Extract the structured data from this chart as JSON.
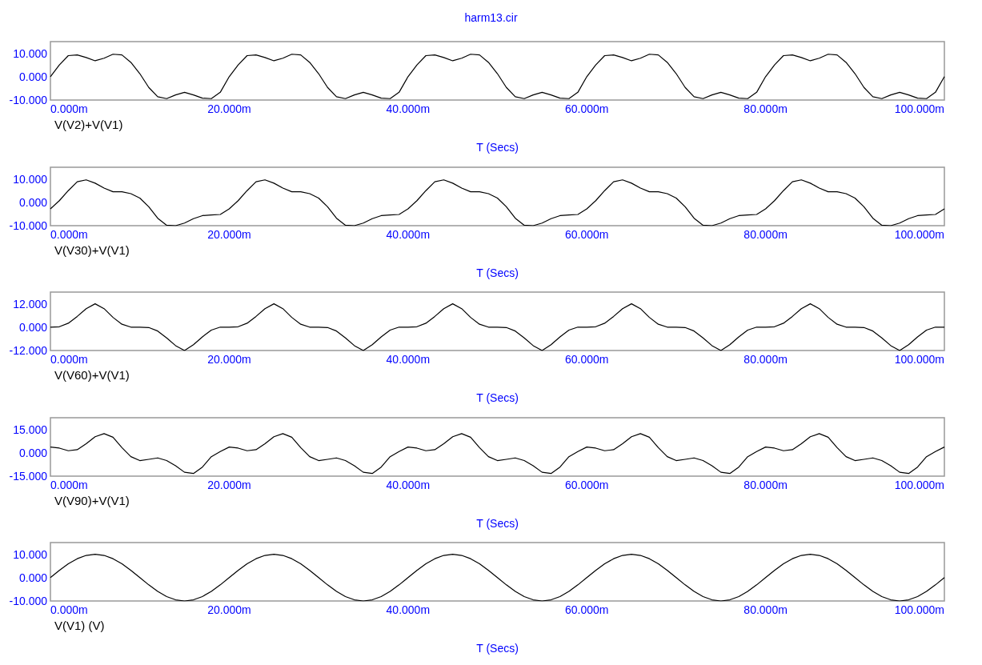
{
  "chart_data": [
    {
      "type": "line",
      "title": "harm13.cir",
      "xlabel": "T (Secs)",
      "legend": "bottom left",
      "x": [
        0,
        1,
        2,
        3,
        4,
        5,
        6,
        7,
        8,
        9,
        10,
        11,
        12,
        13,
        14,
        15,
        16,
        17,
        18,
        19,
        20,
        21,
        22,
        23,
        24,
        25,
        26,
        27,
        28,
        29,
        30,
        31,
        32,
        33,
        34,
        35,
        36,
        37,
        38,
        39,
        40,
        41,
        42,
        43,
        44,
        45,
        46,
        47,
        48,
        49,
        50,
        51,
        52,
        53,
        54,
        55,
        56,
        57,
        58,
        59,
        60,
        61,
        62,
        63,
        64,
        65,
        66,
        67,
        68,
        69,
        70,
        71,
        72,
        73,
        74,
        75,
        76,
        77,
        78,
        79,
        80,
        81,
        82,
        83,
        84,
        85,
        86,
        87,
        88,
        89,
        90,
        91,
        92,
        93,
        94,
        95,
        96,
        97,
        98,
        99,
        100
      ],
      "series": [
        {
          "name": "V(V2)+V(V1)",
          "color": "#000000",
          "values": [
            0,
            5,
            9,
            9.3,
            8.2,
            6.8,
            7.9,
            9.6,
            9.3,
            6.1,
            1.3,
            -4.6,
            -8.6,
            -9.4,
            -7.8,
            -6.7,
            -7.8,
            -9.2,
            -9.4,
            -6.7,
            0,
            5,
            9,
            9.3,
            8.2,
            6.8,
            7.9,
            9.6,
            9.3,
            6.1,
            1.3,
            -4.6,
            -8.6,
            -9.4,
            -7.8,
            -6.7,
            -7.8,
            -9.2,
            -9.4,
            -6.7,
            0,
            5,
            9,
            9.3,
            8.2,
            6.8,
            7.9,
            9.6,
            9.3,
            6.1,
            1.3,
            -4.6,
            -8.6,
            -9.4,
            -7.8,
            -6.7,
            -7.8,
            -9.2,
            -9.4,
            -6.7,
            0,
            5,
            9,
            9.3,
            8.2,
            6.8,
            7.9,
            9.6,
            9.3,
            6.1,
            1.3,
            -4.6,
            -8.6,
            -9.4,
            -7.8,
            -6.7,
            -7.8,
            -9.2,
            -9.4,
            -6.7,
            0,
            5,
            9,
            9.3,
            8.2,
            6.8,
            7.9,
            9.6,
            9.3,
            6.1,
            1.3,
            -4.6,
            -8.6,
            -9.4,
            -7.8,
            -6.7,
            -7.8,
            -9.2,
            -9.4,
            -6.7,
            0
          ]
        }
      ],
      "xlim": [
        0,
        100
      ],
      "xticks": [
        {
          "value": 0,
          "label": "0.000m"
        },
        {
          "value": 20,
          "label": "20.000m"
        },
        {
          "value": 40,
          "label": "40.000m"
        },
        {
          "value": 60,
          "label": "60.000m"
        },
        {
          "value": 80,
          "label": "80.000m"
        },
        {
          "value": 100,
          "label": "100.000m"
        }
      ],
      "ylim": [
        -10,
        15
      ],
      "yticks": [
        {
          "value": -10,
          "label": "-10.000"
        },
        {
          "value": 0,
          "label": "0.000"
        },
        {
          "value": 10,
          "label": "10.000"
        }
      ]
    },
    {
      "type": "line",
      "xlabel": "T (Secs)",
      "legend": "bottom left",
      "x": [
        0,
        1,
        2,
        3,
        4,
        5,
        6,
        7,
        8,
        9,
        10,
        11,
        12,
        13,
        14,
        15,
        16,
        17,
        18,
        19,
        20,
        21,
        22,
        23,
        24,
        25,
        26,
        27,
        28,
        29,
        30,
        31,
        32,
        33,
        34,
        35,
        36,
        37,
        38,
        39,
        40,
        41,
        42,
        43,
        44,
        45,
        46,
        47,
        48,
        49,
        50,
        51,
        52,
        53,
        54,
        55,
        56,
        57,
        58,
        59,
        60,
        61,
        62,
        63,
        64,
        65,
        66,
        67,
        68,
        69,
        70,
        71,
        72,
        73,
        74,
        75,
        76,
        77,
        78,
        79,
        80,
        81,
        82,
        83,
        84,
        85,
        86,
        87,
        88,
        89,
        90,
        91,
        92,
        93,
        94,
        95,
        96,
        97,
        98,
        99,
        100
      ],
      "series": [
        {
          "name": "V(V30)+V(V1)",
          "color": "#000000",
          "values": [
            -2.8,
            0.7,
            5,
            8.8,
            9.6,
            8.2,
            6.1,
            4.5,
            4.5,
            3.7,
            1.8,
            -1.9,
            -6.8,
            -9.8,
            -10,
            -8.9,
            -7,
            -5.7,
            -5.4,
            -5.2,
            -2.8,
            0.7,
            5,
            8.8,
            9.6,
            8.2,
            6.1,
            4.5,
            4.5,
            3.7,
            1.8,
            -1.9,
            -6.8,
            -9.8,
            -10,
            -8.9,
            -7,
            -5.7,
            -5.4,
            -5.2,
            -2.8,
            0.7,
            5,
            8.8,
            9.6,
            8.2,
            6.1,
            4.5,
            4.5,
            3.7,
            1.8,
            -1.9,
            -6.8,
            -9.8,
            -10,
            -8.9,
            -7,
            -5.7,
            -5.4,
            -5.2,
            -2.8,
            0.7,
            5,
            8.8,
            9.6,
            8.2,
            6.1,
            4.5,
            4.5,
            3.7,
            1.8,
            -1.9,
            -6.8,
            -9.8,
            -10,
            -8.9,
            -7,
            -5.7,
            -5.4,
            -5.2,
            -2.8,
            0.7,
            5,
            8.8,
            9.6,
            8.2,
            6.1,
            4.5,
            4.5,
            3.7,
            1.8,
            -1.9,
            -6.8,
            -9.8,
            -10,
            -8.9,
            -7,
            -5.7,
            -5.4,
            -5.2,
            -2.8
          ]
        }
      ],
      "xlim": [
        0,
        100
      ],
      "xticks": [
        {
          "value": 0,
          "label": "0.000m"
        },
        {
          "value": 20,
          "label": "20.000m"
        },
        {
          "value": 40,
          "label": "40.000m"
        },
        {
          "value": 60,
          "label": "60.000m"
        },
        {
          "value": 80,
          "label": "80.000m"
        },
        {
          "value": 100,
          "label": "100.000m"
        }
      ],
      "ylim": [
        -10,
        15
      ],
      "yticks": [
        {
          "value": -10,
          "label": "-10.000"
        },
        {
          "value": 0,
          "label": "0.000"
        },
        {
          "value": 10,
          "label": "10.000"
        }
      ]
    },
    {
      "type": "line",
      "xlabel": "T (Secs)",
      "legend": "bottom left",
      "x": [
        0,
        1,
        2,
        3,
        4,
        5,
        6,
        7,
        8,
        9,
        10,
        11,
        12,
        13,
        14,
        15,
        16,
        17,
        18,
        19,
        20,
        21,
        22,
        23,
        24,
        25,
        26,
        27,
        28,
        29,
        30,
        31,
        32,
        33,
        34,
        35,
        36,
        37,
        38,
        39,
        40,
        41,
        42,
        43,
        44,
        45,
        46,
        47,
        48,
        49,
        50,
        51,
        52,
        53,
        54,
        55,
        56,
        57,
        58,
        59,
        60,
        61,
        62,
        63,
        64,
        65,
        66,
        67,
        68,
        69,
        70,
        71,
        72,
        73,
        74,
        75,
        76,
        77,
        78,
        79,
        80,
        81,
        82,
        83,
        84,
        85,
        86,
        87,
        88,
        89,
        90,
        91,
        92,
        93,
        94,
        95,
        96,
        97,
        98,
        99,
        100
      ],
      "series": [
        {
          "name": "V(V60)+V(V1)",
          "color": "#000000",
          "values": [
            0,
            0.2,
            2,
            5.5,
            9.5,
            12,
            9.5,
            5,
            1.5,
            0,
            0,
            -0.2,
            -2,
            -5.5,
            -9.5,
            -12,
            -9,
            -5,
            -1.5,
            0,
            0,
            0.2,
            2,
            5.5,
            9.5,
            12,
            9.5,
            5,
            1.5,
            0,
            0,
            -0.2,
            -2,
            -5.5,
            -9.5,
            -12,
            -9,
            -5,
            -1.5,
            0,
            0,
            0.2,
            2,
            5.5,
            9.5,
            12,
            9.5,
            5,
            1.5,
            0,
            0,
            -0.2,
            -2,
            -5.5,
            -9.5,
            -12,
            -9,
            -5,
            -1.5,
            0,
            0,
            0.2,
            2,
            5.5,
            9.5,
            12,
            9.5,
            5,
            1.5,
            0,
            0,
            -0.2,
            -2,
            -5.5,
            -9.5,
            -12,
            -9,
            -5,
            -1.5,
            0,
            0,
            0.2,
            2,
            5.5,
            9.5,
            12,
            9.5,
            5,
            1.5,
            0,
            0,
            -0.2,
            -2,
            -5.5,
            -9.5,
            -12,
            -9,
            -5,
            -1.5,
            0,
            0
          ]
        }
      ],
      "xlim": [
        0,
        100
      ],
      "xticks": [
        {
          "value": 0,
          "label": "0.000m"
        },
        {
          "value": 20,
          "label": "20.000m"
        },
        {
          "value": 40,
          "label": "40.000m"
        },
        {
          "value": 60,
          "label": "60.000m"
        },
        {
          "value": 80,
          "label": "80.000m"
        },
        {
          "value": 100,
          "label": "100.000m"
        }
      ],
      "ylim": [
        -12,
        18
      ],
      "yticks": [
        {
          "value": -12,
          "label": "-12.000"
        },
        {
          "value": 0,
          "label": "0.000"
        },
        {
          "value": 12,
          "label": "12.000"
        }
      ]
    },
    {
      "type": "line",
      "xlabel": "T (Secs)",
      "legend": "bottom left",
      "x": [
        0,
        1,
        2,
        3,
        4,
        5,
        6,
        7,
        8,
        9,
        10,
        11,
        12,
        13,
        14,
        15,
        16,
        17,
        18,
        19,
        20,
        21,
        22,
        23,
        24,
        25,
        26,
        27,
        28,
        29,
        30,
        31,
        32,
        33,
        34,
        35,
        36,
        37,
        38,
        39,
        40,
        41,
        42,
        43,
        44,
        45,
        46,
        47,
        48,
        49,
        50,
        51,
        52,
        53,
        54,
        55,
        56,
        57,
        58,
        59,
        60,
        61,
        62,
        63,
        64,
        65,
        66,
        67,
        68,
        69,
        70,
        71,
        72,
        73,
        74,
        75,
        76,
        77,
        78,
        79,
        80,
        81,
        82,
        83,
        84,
        85,
        86,
        87,
        88,
        89,
        90,
        91,
        92,
        93,
        94,
        95,
        96,
        97,
        98,
        99,
        100
      ],
      "series": [
        {
          "name": "V(V90)+V(V1)",
          "color": "#000000",
          "values": [
            3.7,
            3,
            1.3,
            2,
            5.8,
            10.3,
            12.3,
            10,
            3.3,
            -2.5,
            -5,
            -4.2,
            -3.3,
            -5,
            -8.3,
            -12.5,
            -13.3,
            -9.2,
            -2.5,
            0.8,
            3.7,
            3,
            1.3,
            2,
            5.8,
            10.3,
            12.3,
            10,
            3.3,
            -2.5,
            -5,
            -4.2,
            -3.3,
            -5,
            -8.3,
            -12.5,
            -13.3,
            -9.2,
            -2.5,
            0.8,
            3.7,
            3,
            1.3,
            2,
            5.8,
            10.3,
            12.3,
            10,
            3.3,
            -2.5,
            -5,
            -4.2,
            -3.3,
            -5,
            -8.3,
            -12.5,
            -13.3,
            -9.2,
            -2.5,
            0.8,
            3.7,
            3,
            1.3,
            2,
            5.8,
            10.3,
            12.3,
            10,
            3.3,
            -2.5,
            -5,
            -4.2,
            -3.3,
            -5,
            -8.3,
            -12.5,
            -13.3,
            -9.2,
            -2.5,
            0.8,
            3.7,
            3,
            1.3,
            2,
            5.8,
            10.3,
            12.3,
            10,
            3.3,
            -2.5,
            -5,
            -4.2,
            -3.3,
            -5,
            -8.3,
            -12.5,
            -13.3,
            -9.2,
            -2.5,
            0.8,
            3.7
          ]
        }
      ],
      "xlim": [
        0,
        100
      ],
      "xticks": [
        {
          "value": 0,
          "label": "0.000m"
        },
        {
          "value": 20,
          "label": "20.000m"
        },
        {
          "value": 40,
          "label": "40.000m"
        },
        {
          "value": 60,
          "label": "60.000m"
        },
        {
          "value": 80,
          "label": "80.000m"
        },
        {
          "value": 100,
          "label": "100.000m"
        }
      ],
      "ylim": [
        -15,
        22.5
      ],
      "yticks": [
        {
          "value": -15,
          "label": "-15.000"
        },
        {
          "value": 0,
          "label": "0.000"
        },
        {
          "value": 15,
          "label": "15.000"
        }
      ]
    },
    {
      "type": "line",
      "xlabel": "T (Secs)",
      "legend": "bottom left",
      "x": [
        0,
        1,
        2,
        3,
        4,
        5,
        6,
        7,
        8,
        9,
        10,
        11,
        12,
        13,
        14,
        15,
        16,
        17,
        18,
        19,
        20,
        21,
        22,
        23,
        24,
        25,
        26,
        27,
        28,
        29,
        30,
        31,
        32,
        33,
        34,
        35,
        36,
        37,
        38,
        39,
        40,
        41,
        42,
        43,
        44,
        45,
        46,
        47,
        48,
        49,
        50,
        51,
        52,
        53,
        54,
        55,
        56,
        57,
        58,
        59,
        60,
        61,
        62,
        63,
        64,
        65,
        66,
        67,
        68,
        69,
        70,
        71,
        72,
        73,
        74,
        75,
        76,
        77,
        78,
        79,
        80,
        81,
        82,
        83,
        84,
        85,
        86,
        87,
        88,
        89,
        90,
        91,
        92,
        93,
        94,
        95,
        96,
        97,
        98,
        99,
        100
      ],
      "series": [
        {
          "name": "V(V1) (V)",
          "color": "#000000",
          "values": [
            0,
            3.1,
            5.9,
            8.1,
            9.5,
            10,
            9.5,
            8.1,
            5.9,
            3.1,
            0,
            -3.1,
            -5.9,
            -8.1,
            -9.5,
            -10,
            -9.5,
            -8.1,
            -5.9,
            -3.1,
            0,
            3.1,
            5.9,
            8.1,
            9.5,
            10,
            9.5,
            8.1,
            5.9,
            3.1,
            0,
            -3.1,
            -5.9,
            -8.1,
            -9.5,
            -10,
            -9.5,
            -8.1,
            -5.9,
            -3.1,
            0,
            3.1,
            5.9,
            8.1,
            9.5,
            10,
            9.5,
            8.1,
            5.9,
            3.1,
            0,
            -3.1,
            -5.9,
            -8.1,
            -9.5,
            -10,
            -9.5,
            -8.1,
            -5.9,
            -3.1,
            0,
            3.1,
            5.9,
            8.1,
            9.5,
            10,
            9.5,
            8.1,
            5.9,
            3.1,
            0,
            -3.1,
            -5.9,
            -8.1,
            -9.5,
            -10,
            -9.5,
            -8.1,
            -5.9,
            -3.1,
            0,
            3.1,
            5.9,
            8.1,
            9.5,
            10,
            9.5,
            8.1,
            5.9,
            3.1,
            0,
            -3.1,
            -5.9,
            -8.1,
            -9.5,
            -10,
            -9.5,
            -8.1,
            -5.9,
            -3.1,
            0
          ]
        }
      ],
      "xlim": [
        0,
        100
      ],
      "xticks": [
        {
          "value": 0,
          "label": "0.000m"
        },
        {
          "value": 20,
          "label": "20.000m"
        },
        {
          "value": 40,
          "label": "40.000m"
        },
        {
          "value": 60,
          "label": "60.000m"
        },
        {
          "value": 80,
          "label": "80.000m"
        },
        {
          "value": 100,
          "label": "100.000m"
        }
      ],
      "ylim": [
        -10,
        15
      ],
      "yticks": [
        {
          "value": -10,
          "label": "-10.000"
        },
        {
          "value": 0,
          "label": "0.000"
        },
        {
          "value": 10,
          "label": "10.000"
        }
      ]
    }
  ]
}
